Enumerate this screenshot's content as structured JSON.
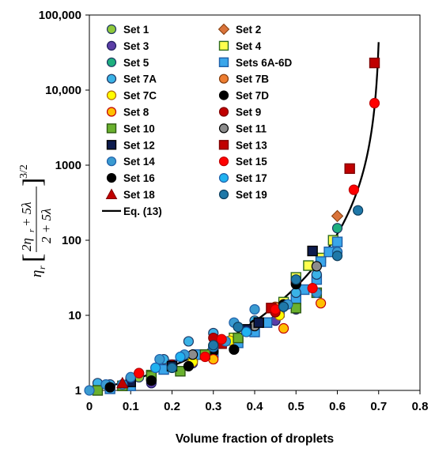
{
  "chart_data": {
    "type": "scatter",
    "xlabel": "Volume fraction of droplets",
    "ylabel": {
      "eta": "η",
      "sub": "r",
      "frac_num": "2η",
      "frac_num_sub": "r",
      "frac_num_rest": " + 5λ",
      "frac_den": "2 + 5λ",
      "exponent": "3/2"
    },
    "xlim": [
      0,
      0.8
    ],
    "ylim": [
      1,
      100000
    ],
    "yscale": "log",
    "x_ticks": [
      "0",
      "0.1",
      "0.2",
      "0.3",
      "0.4",
      "0.5",
      "0.6",
      "0.7",
      "0.8"
    ],
    "y_ticks": [
      "1",
      "10",
      "100",
      "1000",
      "10,000",
      "100,000"
    ],
    "grid": false,
    "legend_position": "top-left",
    "series": [
      {
        "name": "Set 1",
        "marker": "circle",
        "color": "#8fc93a",
        "edge": "#1f3864",
        "points": [
          [
            0.02,
            1.05
          ],
          [
            0.05,
            1.15
          ],
          [
            0.12,
            1.5
          ],
          [
            0.2,
            2.2
          ],
          [
            0.3,
            3.5
          ],
          [
            0.4,
            7
          ],
          [
            0.5,
            20
          ]
        ]
      },
      {
        "name": "Set 2",
        "marker": "diamond",
        "color": "#d9733a",
        "edge": "#843c0c",
        "points": [
          [
            0.6,
            210
          ]
        ]
      },
      {
        "name": "Set 3",
        "marker": "circle",
        "color": "#5b3ea6",
        "edge": "#1f1f5c",
        "points": [
          [
            0.1,
            1.3
          ],
          [
            0.15,
            1.25
          ],
          [
            0.25,
            2.3
          ],
          [
            0.35,
            4.5
          ],
          [
            0.45,
            8.5
          ],
          [
            0.5,
            12
          ]
        ]
      },
      {
        "name": "Set 4",
        "marker": "square",
        "color": "#ffff4d",
        "edge": "#2e6b1f",
        "points": [
          [
            0.15,
            1.6
          ],
          [
            0.25,
            2.8
          ],
          [
            0.3,
            3.5
          ],
          [
            0.35,
            5
          ],
          [
            0.45,
            12.5
          ],
          [
            0.47,
            15
          ],
          [
            0.5,
            18
          ],
          [
            0.5,
            32
          ],
          [
            0.53,
            46
          ],
          [
            0.56,
            58
          ],
          [
            0.59,
            100
          ]
        ]
      },
      {
        "name": "Set 5",
        "marker": "circle",
        "color": "#1eaf7e",
        "edge": "#1f3864",
        "points": [
          [
            0.4,
            6
          ],
          [
            0.5,
            18
          ],
          [
            0.6,
            145
          ]
        ]
      },
      {
        "name": "Sets 6A-6D",
        "marker": "square",
        "color": "#3aa6ea",
        "edge": "#1f5fa8",
        "points": [
          [
            0.05,
            1.05
          ],
          [
            0.1,
            1.15
          ],
          [
            0.18,
            1.9
          ],
          [
            0.2,
            2.2
          ],
          [
            0.26,
            3
          ],
          [
            0.3,
            3.2
          ],
          [
            0.36,
            4.3
          ],
          [
            0.4,
            6
          ],
          [
            0.43,
            8
          ],
          [
            0.46,
            11
          ],
          [
            0.5,
            16
          ],
          [
            0.52,
            22
          ],
          [
            0.55,
            30
          ],
          [
            0.56,
            52
          ],
          [
            0.58,
            70
          ],
          [
            0.6,
            95
          ]
        ]
      },
      {
        "name": "Set 7A",
        "marker": "circle",
        "color": "#3ab2e6",
        "edge": "#1f3864",
        "points": [
          [
            0.02,
            1.25
          ],
          [
            0.05,
            1.2
          ],
          [
            0.12,
            1.7
          ],
          [
            0.18,
            2.6
          ],
          [
            0.24,
            4.5
          ],
          [
            0.3,
            5.8
          ],
          [
            0.4,
            8.5
          ],
          [
            0.5,
            20
          ],
          [
            0.55,
            35
          ],
          [
            0.6,
            70
          ]
        ]
      },
      {
        "name": "Set 7B",
        "marker": "circle",
        "color": "#ed7d31",
        "edge": "#843c0c",
        "points": [
          [
            0.45,
            13
          ]
        ]
      },
      {
        "name": "Set 7C",
        "marker": "circle",
        "color": "#ffff00",
        "edge": "#b06b00",
        "points": [
          [
            0.25,
            2.4
          ],
          [
            0.34,
            4.6
          ],
          [
            0.46,
            10
          ]
        ]
      },
      {
        "name": "Set 7D",
        "marker": "circle",
        "color": "#000000",
        "edge": "#000000",
        "points": [
          [
            0.1,
            1.35
          ],
          [
            0.2,
            2.1
          ],
          [
            0.3,
            3.3
          ],
          [
            0.4,
            7.5
          ],
          [
            0.47,
            14
          ]
        ]
      },
      {
        "name": "Set 8",
        "marker": "circle",
        "color": "#ffc000",
        "edge": "#c00000",
        "points": [
          [
            0.3,
            2.6
          ],
          [
            0.47,
            6.7
          ],
          [
            0.56,
            14.5
          ]
        ]
      },
      {
        "name": "Set 9",
        "marker": "circle",
        "color": "#c00000",
        "edge": "#7f0000",
        "points": [
          [
            0.1,
            1.4
          ],
          [
            0.2,
            2.2
          ],
          [
            0.3,
            5
          ],
          [
            0.45,
            11
          ],
          [
            0.5,
            27
          ]
        ]
      },
      {
        "name": "Set 10",
        "marker": "square",
        "color": "#6ab12e",
        "edge": "#2e5a12",
        "points": [
          [
            0.02,
            1.0
          ],
          [
            0.08,
            1.15
          ],
          [
            0.15,
            1.55
          ],
          [
            0.22,
            1.8
          ],
          [
            0.28,
            3
          ],
          [
            0.36,
            5
          ],
          [
            0.5,
            12.5
          ],
          [
            0.55,
            20
          ]
        ]
      },
      {
        "name": "Set 11",
        "marker": "circle",
        "color": "#8c8c8c",
        "edge": "#000000",
        "points": [
          [
            0.25,
            3
          ],
          [
            0.4,
            7.2
          ],
          [
            0.55,
            45
          ]
        ]
      },
      {
        "name": "Set 12",
        "marker": "square",
        "color": "#0d1b4d",
        "edge": "#000000",
        "points": [
          [
            0.1,
            1.3
          ],
          [
            0.2,
            2.1
          ],
          [
            0.38,
            6.5
          ],
          [
            0.41,
            8
          ],
          [
            0.54,
            72
          ]
        ]
      },
      {
        "name": "Set 13",
        "marker": "square",
        "color": "#c00000",
        "edge": "#7f0000",
        "points": [
          [
            0.32,
            4.2
          ],
          [
            0.44,
            12.5
          ],
          [
            0.63,
            900
          ],
          [
            0.69,
            23000
          ]
        ]
      },
      {
        "name": "Set 14",
        "marker": "circle",
        "color": "#3a9bd1",
        "edge": "#1f5fa8",
        "points": [
          [
            0.0,
            1.0
          ],
          [
            0.04,
            1.2
          ],
          [
            0.1,
            1.5
          ],
          [
            0.17,
            2.6
          ],
          [
            0.23,
            3
          ],
          [
            0.33,
            4.5
          ],
          [
            0.35,
            8
          ],
          [
            0.4,
            12
          ],
          [
            0.48,
            14
          ],
          [
            0.55,
            20
          ],
          [
            0.6,
            70
          ]
        ]
      },
      {
        "name": "Set 15",
        "marker": "circle",
        "color": "#ff0000",
        "edge": "#c00000",
        "points": [
          [
            0.12,
            1.7
          ],
          [
            0.28,
            2.8
          ],
          [
            0.32,
            4.8
          ],
          [
            0.45,
            12
          ],
          [
            0.5,
            28
          ],
          [
            0.54,
            23
          ],
          [
            0.64,
            470
          ],
          [
            0.69,
            6700
          ]
        ]
      },
      {
        "name": "Set 16",
        "marker": "circle",
        "color": "#000000",
        "edge": "#000000",
        "points": [
          [
            0.05,
            1.1
          ],
          [
            0.15,
            1.35
          ],
          [
            0.24,
            2.1
          ],
          [
            0.35,
            3.5
          ],
          [
            0.5,
            26
          ]
        ]
      },
      {
        "name": "Set 17",
        "marker": "circle",
        "color": "#20b2f0",
        "edge": "#1f5fa8",
        "points": [
          [
            0.08,
            1.2
          ],
          [
            0.16,
            2
          ],
          [
            0.22,
            2.8
          ],
          [
            0.3,
            3.8
          ],
          [
            0.38,
            6
          ]
        ]
      },
      {
        "name": "Set 18",
        "marker": "triangle",
        "color": "#c00000",
        "edge": "#7f0000",
        "points": [
          [
            0.08,
            1.25
          ]
        ]
      },
      {
        "name": "Set 19",
        "marker": "circle",
        "color": "#1f78a8",
        "edge": "#0d3d5c",
        "points": [
          [
            0.2,
            2
          ],
          [
            0.3,
            4
          ],
          [
            0.36,
            7
          ],
          [
            0.47,
            13
          ],
          [
            0.5,
            30
          ],
          [
            0.6,
            62
          ],
          [
            0.65,
            250
          ]
        ]
      }
    ],
    "curve": {
      "name": "Eq. (13)",
      "color": "#000000"
    }
  }
}
